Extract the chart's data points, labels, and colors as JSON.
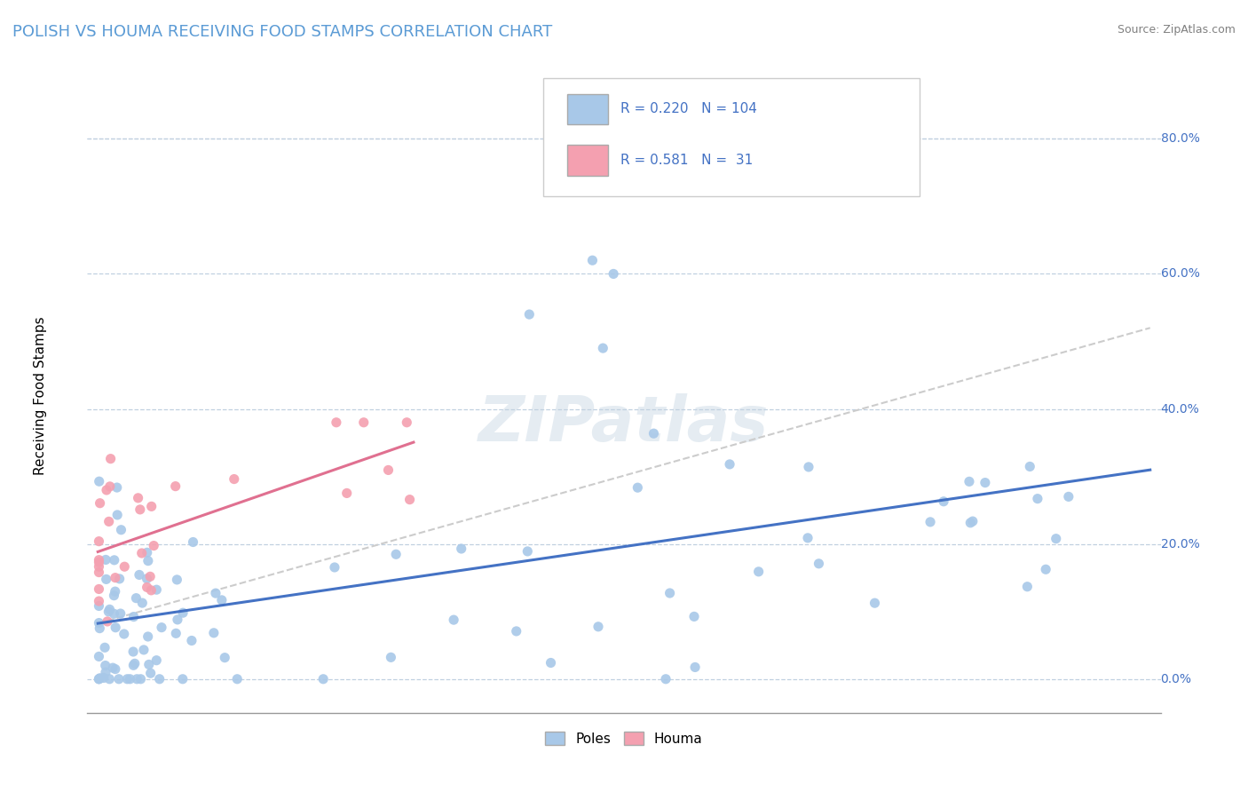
{
  "title": "POLISH VS HOUMA RECEIVING FOOD STAMPS CORRELATION CHART",
  "source": "Source: ZipAtlas.com",
  "ylabel": "Receiving Food Stamps",
  "ytick_labels": [
    "0.0%",
    "20.0%",
    "40.0%",
    "60.0%",
    "80.0%"
  ],
  "ytick_vals": [
    0.0,
    0.2,
    0.4,
    0.6,
    0.8
  ],
  "xlim": [
    0.0,
    1.0
  ],
  "ylim": [
    -0.05,
    0.9
  ],
  "title_color": "#5b9bd5",
  "title_fontsize": 13,
  "poles_scatter_color": "#a8c8e8",
  "houma_scatter_color": "#f4a0b0",
  "poles_line_color": "#4472c4",
  "houma_line_color": "#e07090",
  "dashed_line_color": "#bbbbbb",
  "legend_R_poles": "0.220",
  "legend_N_poles": "104",
  "legend_R_houma": "0.581",
  "legend_N_houma": " 31",
  "legend_text_color": "#4472c4",
  "watermark_color": "#d0dde8"
}
